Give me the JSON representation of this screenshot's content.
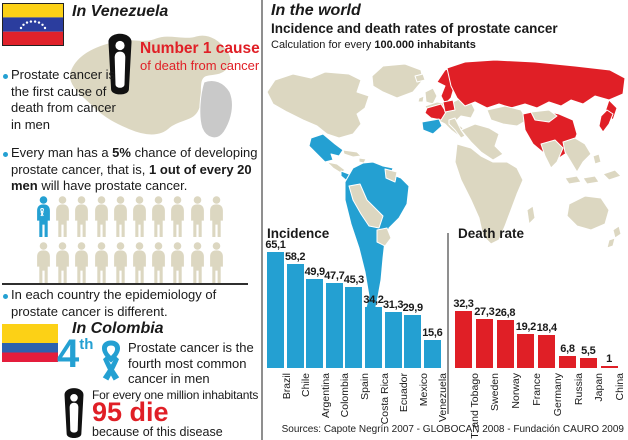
{
  "colors": {
    "accent_blue": "#24a0d2",
    "accent_red": "#e01f26",
    "map_land": "#dcd7c1",
    "map_grey": "#c9c9c9",
    "divider_grey": "#8f8f8f",
    "flag_ve": {
      "yellow": "#fcd116",
      "blue": "#2b3d9e",
      "red": "#e0222b"
    },
    "flag_co": {
      "yellow": "#fcd116",
      "blue": "#2d62ae",
      "red": "#e41d3c"
    }
  },
  "left": {
    "venezuela": {
      "title": "In Venezuela",
      "cause_title": "Number 1 cause",
      "cause_subtitle": "of death from cancer",
      "bullet1": [
        {
          "t": "Prostate cancer is the first cause of death from cancer in men",
          "b": false
        }
      ],
      "bullet2": [
        {
          "t": "Every man has a ",
          "b": false
        },
        {
          "t": "5%",
          "b": true
        },
        {
          "t": " chance of developing prostate cancer, that is, ",
          "b": false
        },
        {
          "t": "1 out of every 20 men",
          "b": true
        },
        {
          "t": " will have prostate cancer.",
          "b": false
        }
      ],
      "bullet3": [
        {
          "t": "In each country the epidemiology of prostate cancer is different.",
          "b": false
        }
      ],
      "crowd": {
        "total": 20,
        "per_row": 10,
        "highlighted": 1
      }
    },
    "colombia": {
      "title": "In Colombia",
      "rank_number": "4",
      "rank_ordinal": "th",
      "rank_text": "Prostate cancer is the fourth most common cancer in men",
      "per_million_label": "For every one million inhabitants",
      "deaths_headline": "95 die",
      "deaths_subtitle": "because of this disease"
    }
  },
  "right": {
    "title": "In the world",
    "subtitle": "Incidence and death rates of prostate cancer",
    "note": [
      {
        "t": "Calculation for every ",
        "b": false
      },
      {
        "t": "100.000 inhabitants",
        "b": true
      }
    ],
    "sources": "Sources:  Capote Negrín 2007 - GLOBOCAN 2008 - Fundación CAURO 2009"
  },
  "map": {
    "incidence_countries": [
      "Brazil",
      "Chile",
      "Argentina",
      "Colombia",
      "Spain",
      "Costa Rica",
      "Ecuador",
      "Mexico",
      "Venezuela"
    ],
    "death_rate_countries": [
      "Trinidad and Tobago",
      "Sweden",
      "Norway",
      "France",
      "Germany",
      "Russia",
      "Japan",
      "China"
    ]
  },
  "chart_data": [
    {
      "type": "bar",
      "title": "Incidence",
      "unit": "per 100.000 inhabitants",
      "categories": [
        "Brazil",
        "Chile",
        "Argentina",
        "Colombia",
        "Spain",
        "Costa Rica",
        "Ecuador",
        "Mexico",
        "Venezuela"
      ],
      "values": [
        65.1,
        58.2,
        49.9,
        47.7,
        45.3,
        34.2,
        31.3,
        29.9,
        15.6
      ],
      "value_labels": [
        "65,1",
        "58,2",
        "49,9",
        "47,7",
        "45,3",
        "34,2",
        "31,3",
        "29,9",
        "15,6"
      ],
      "color": "#24a0d2",
      "ylim": [
        0,
        70
      ],
      "grid": false,
      "legend": false
    },
    {
      "type": "bar",
      "title": "Death rate",
      "unit": "per 100.000 inhabitants",
      "categories": [
        "T. and Tobago",
        "Sweden",
        "Norway",
        "France",
        "Germany",
        "Russia",
        "Japan",
        "China"
      ],
      "values": [
        32.3,
        27.3,
        26.8,
        19.2,
        18.4,
        6.8,
        5.5,
        1
      ],
      "value_labels": [
        "32,3",
        "27,3",
        "26,8",
        "19,2",
        "18,4",
        "6,8",
        "5,5",
        "1"
      ],
      "color": "#e01f26",
      "ylim": [
        0,
        70
      ],
      "grid": false,
      "legend": false
    }
  ]
}
